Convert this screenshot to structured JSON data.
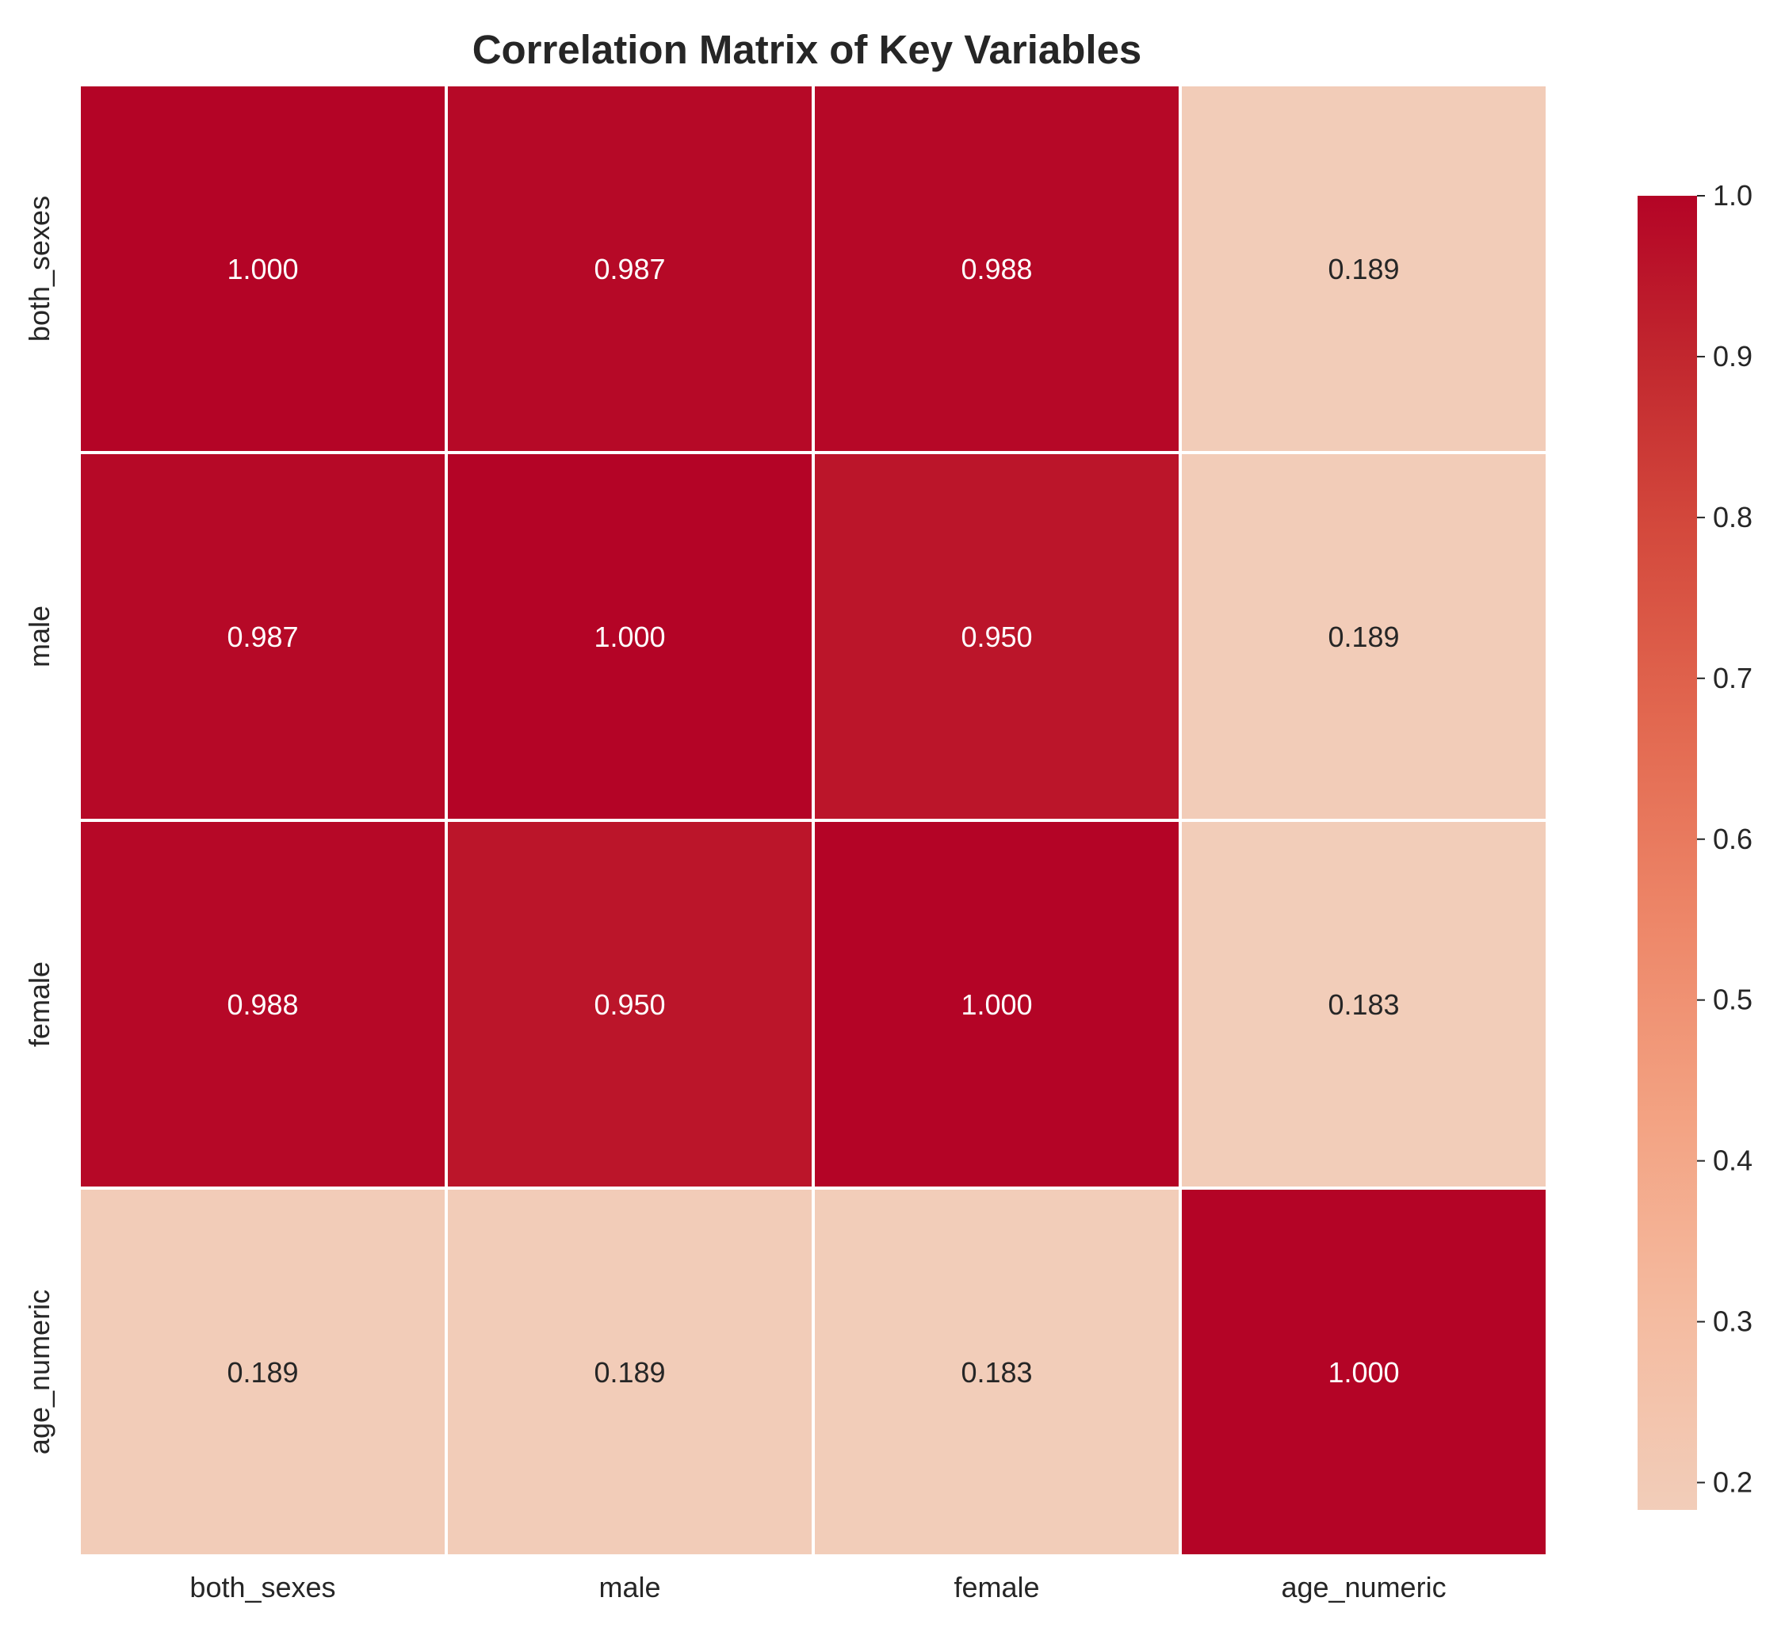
{
  "chart_data": {
    "type": "heatmap",
    "title": "Correlation Matrix of Key Variables",
    "xlabel": "",
    "ylabel": "",
    "x_categories": [
      "both_sexes",
      "male",
      "female",
      "age_numeric"
    ],
    "y_categories": [
      "both_sexes",
      "male",
      "female",
      "age_numeric"
    ],
    "values": [
      [
        1.0,
        0.987,
        0.988,
        0.189
      ],
      [
        0.987,
        1.0,
        0.95,
        0.189
      ],
      [
        0.988,
        0.95,
        1.0,
        0.183
      ],
      [
        0.189,
        0.189,
        0.183,
        1.0
      ]
    ],
    "value_labels": [
      [
        "1.000",
        "0.987",
        "0.988",
        "0.189"
      ],
      [
        "0.987",
        "1.000",
        "0.950",
        "0.189"
      ],
      [
        "0.988",
        "0.950",
        "1.000",
        "0.183"
      ],
      [
        "0.189",
        "0.189",
        "0.183",
        "1.000"
      ]
    ],
    "colorbar": {
      "range": [
        0.183,
        1.0
      ],
      "ticks": [
        0.2,
        0.3,
        0.4,
        0.5,
        0.6,
        0.7,
        0.8,
        0.9,
        1.0
      ],
      "tick_labels": [
        "0.2",
        "0.3",
        "0.4",
        "0.5",
        "0.6",
        "0.7",
        "0.8",
        "0.9",
        "1.0"
      ]
    },
    "colormap": "coolwarm",
    "colors": {
      "high": "#b40426",
      "low": "#f2cdb9",
      "cell_border": "#ffffff",
      "text_on_dark": "#ffffff",
      "text_on_light": "#262626",
      "axis_text": "#262626"
    },
    "grid": false,
    "legend": "colorbar-right"
  }
}
